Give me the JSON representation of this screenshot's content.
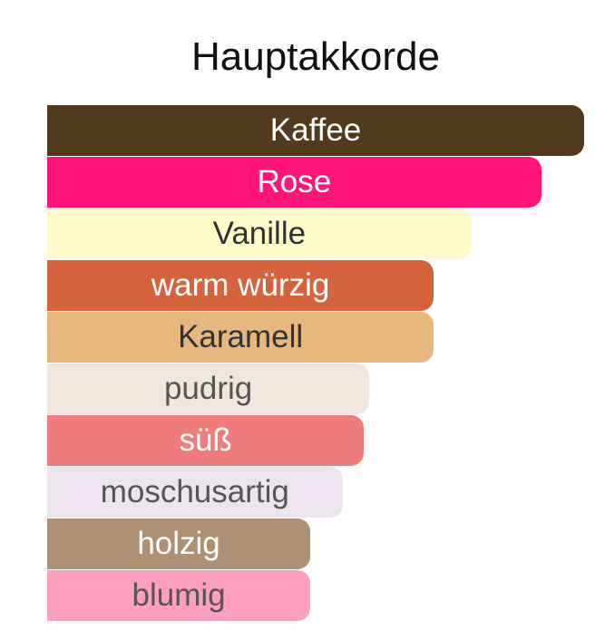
{
  "chart_data": {
    "type": "bar",
    "orientation": "horizontal",
    "title": "Hauptakkorde",
    "categories": [
      "Kaffee",
      "Rose",
      "Vanille",
      "warm würzig",
      "Karamell",
      "pudrig",
      "süß",
      "moschusartig",
      "holzig",
      "blumig"
    ],
    "values": [
      100,
      92,
      79,
      72,
      72,
      60,
      59,
      55,
      49,
      49
    ],
    "colors": [
      "#523a1f",
      "#fe1577",
      "#fffbcb",
      "#d5643e",
      "#e6b880",
      "#f1e6db",
      "#ef7d7d",
      "#ede4f0",
      "#ae9174",
      "#fe9fbe"
    ],
    "text_colors": [
      "#ffffff",
      "#ffffff",
      "#333333",
      "#ffffff",
      "#333333",
      "#555555",
      "#ffffff",
      "#555555",
      "#ffffff",
      "#555555"
    ],
    "xlim": [
      0,
      100
    ],
    "grid": false,
    "legend": "none"
  }
}
